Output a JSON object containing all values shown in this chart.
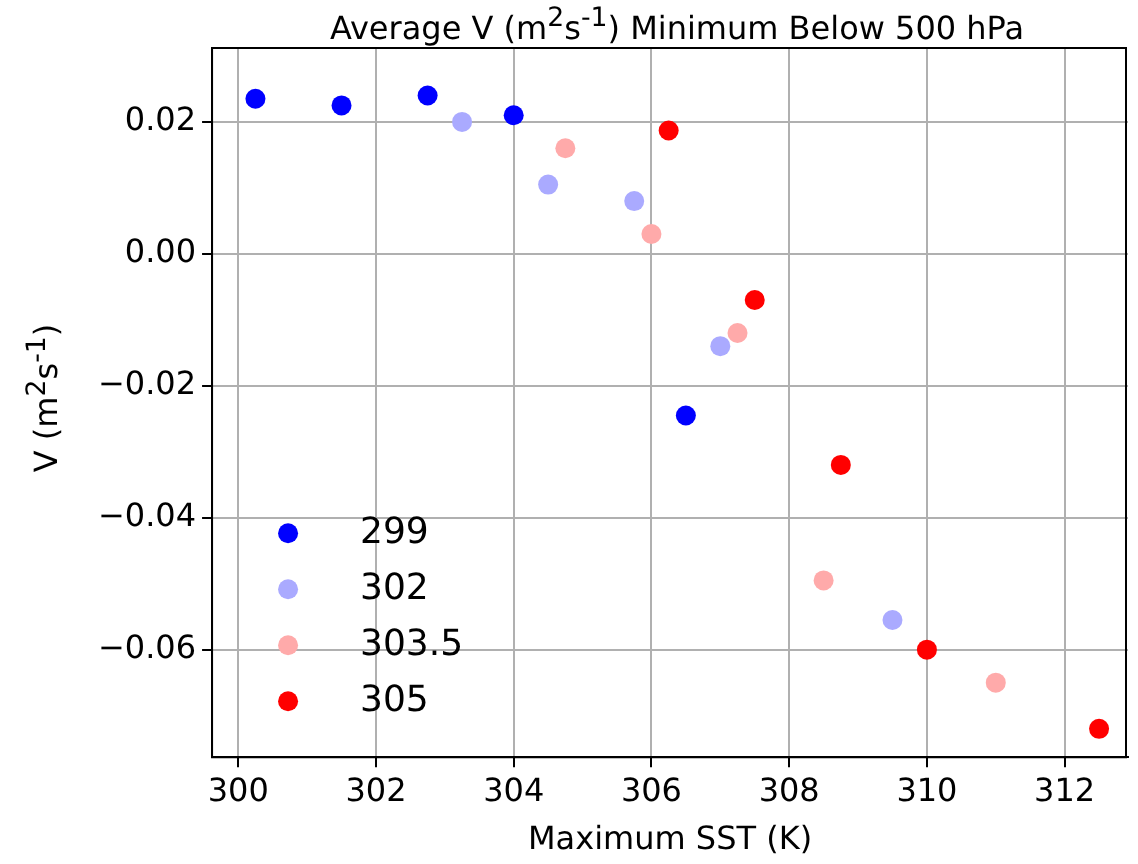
{
  "chart_data": {
    "type": "scatter",
    "title": "Average V (m$^{2}$s$^{-1}$) Minimum Below 500 hPa",
    "xlabel": "Maximum SST (K)",
    "ylabel": "V (m$^{2}$s$^{-1}$)",
    "series": [
      {
        "name": "299",
        "color": "#0000ff",
        "x": [
          300.25,
          301.5,
          302.75,
          304,
          306.5
        ],
        "values": [
          0.0235,
          0.0225,
          0.024,
          0.021,
          -0.0245
        ]
      },
      {
        "name": "302",
        "color": "#aaaaff",
        "x": [
          303.25,
          304.5,
          305.75,
          307,
          309.5
        ],
        "values": [
          0.02,
          0.0105,
          0.008,
          -0.014,
          -0.0555
        ]
      },
      {
        "name": "303.5",
        "color": "#ffaaaa",
        "x": [
          304.75,
          306,
          307.25,
          308.5,
          311
        ],
        "values": [
          0.016,
          0.003,
          -0.012,
          -0.0495,
          -0.065
        ]
      },
      {
        "name": "305",
        "color": "#ff0000",
        "x": [
          306.25,
          307.5,
          308.75,
          310,
          312.5
        ],
        "values": [
          0.0187,
          -0.007,
          -0.032,
          -0.06,
          -0.072
        ]
      }
    ],
    "xlim": [
      299.62,
      312.92
    ],
    "ylim": [
      -0.0763,
      0.0312
    ],
    "xticks": [
      300,
      302,
      304,
      306,
      308,
      310,
      312
    ],
    "yticks": [
      {
        "value": -0.06,
        "label": "−0.06"
      },
      {
        "value": -0.04,
        "label": "−0.04"
      },
      {
        "value": -0.02,
        "label": "−0.02"
      },
      {
        "value": 0,
        "label": "0.00"
      },
      {
        "value": 0.02,
        "label": "0.02"
      }
    ],
    "grid": true,
    "legend": "bottom left",
    "marker": "circle"
  }
}
